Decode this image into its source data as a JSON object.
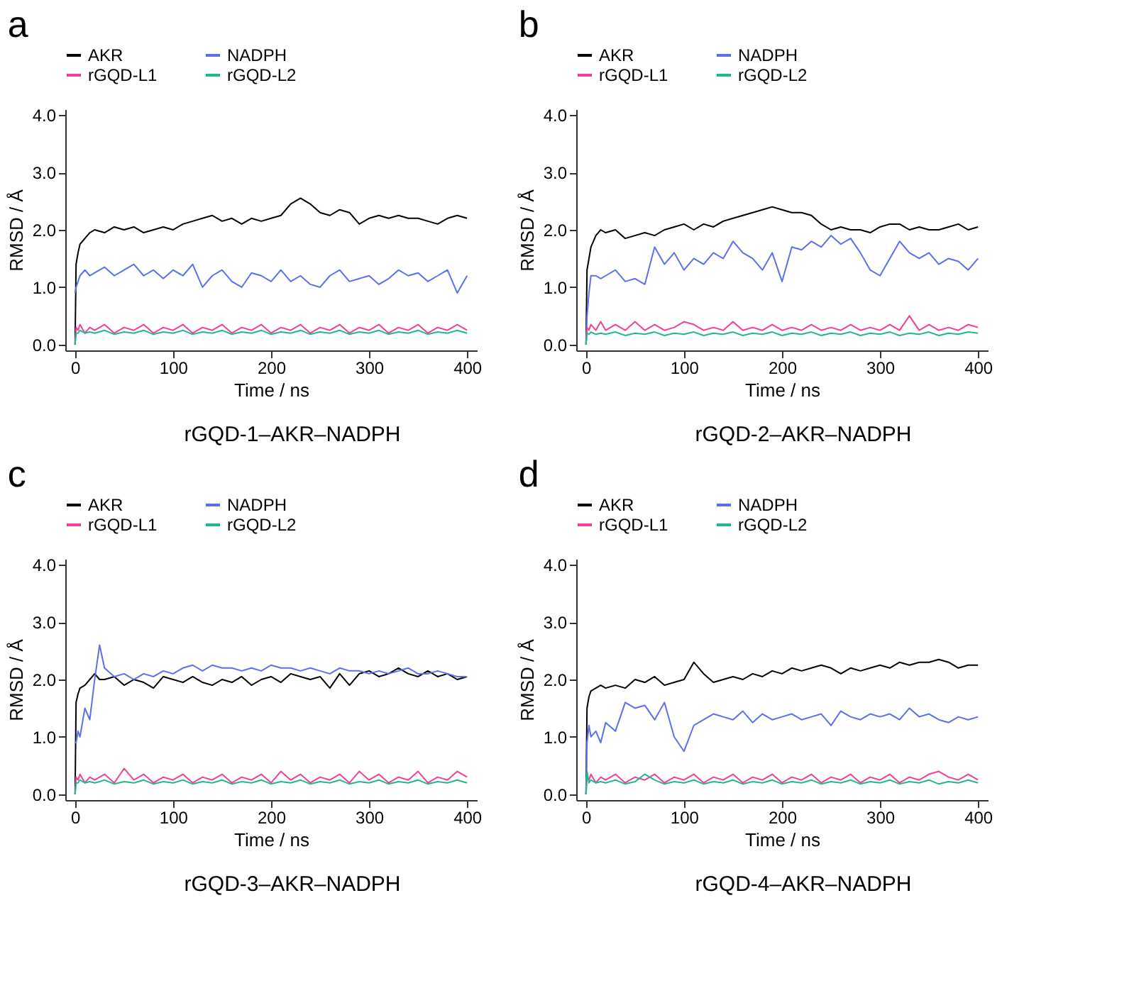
{
  "chart_data": [
    {
      "type": "line",
      "title": "a",
      "xlabel": "Time / ns",
      "ylabel": "RMSD / Å",
      "annotations": [
        "rGQD-1–AKR–NADPH"
      ],
      "legend": "top",
      "grid": false,
      "line_style": "solid",
      "xlim": [
        -10,
        410
      ],
      "xticks": [
        0,
        100,
        200,
        300,
        400
      ],
      "ylim": [
        -0.1,
        4.1
      ],
      "yticks": [
        {
          "value": 0,
          "label": "0.0"
        },
        {
          "value": 1,
          "label": "1.0"
        },
        {
          "value": 2,
          "label": "2.0"
        },
        {
          "value": 3,
          "label": "3.0"
        },
        {
          "value": 4,
          "label": "4.0"
        }
      ],
      "x": [
        0,
        1,
        3,
        5,
        10,
        15,
        20,
        30,
        40,
        50,
        60,
        70,
        80,
        90,
        100,
        110,
        120,
        130,
        140,
        150,
        160,
        170,
        180,
        190,
        200,
        210,
        220,
        230,
        240,
        250,
        260,
        270,
        280,
        290,
        300,
        310,
        320,
        330,
        340,
        350,
        360,
        370,
        380,
        390,
        400
      ],
      "series": [
        {
          "name": "AKR",
          "color": "#000000",
          "values": [
            0.0,
            1.4,
            1.6,
            1.75,
            1.85,
            1.95,
            2.0,
            1.95,
            2.05,
            2.0,
            2.05,
            1.95,
            2.0,
            2.05,
            2.0,
            2.1,
            2.15,
            2.2,
            2.25,
            2.15,
            2.2,
            2.1,
            2.2,
            2.15,
            2.2,
            2.25,
            2.45,
            2.55,
            2.45,
            2.3,
            2.25,
            2.35,
            2.3,
            2.1,
            2.2,
            2.25,
            2.2,
            2.25,
            2.2,
            2.2,
            2.15,
            2.1,
            2.2,
            2.25,
            2.2
          ]
        },
        {
          "name": "NADPH",
          "color": "#5b6ff0",
          "values": [
            0.9,
            1.0,
            1.1,
            1.2,
            1.3,
            1.2,
            1.25,
            1.35,
            1.2,
            1.3,
            1.4,
            1.2,
            1.3,
            1.15,
            1.3,
            1.2,
            1.4,
            1.0,
            1.2,
            1.3,
            1.1,
            1.0,
            1.25,
            1.2,
            1.1,
            1.3,
            1.1,
            1.2,
            1.05,
            1.0,
            1.2,
            1.3,
            1.1,
            1.15,
            1.2,
            1.05,
            1.15,
            1.3,
            1.2,
            1.25,
            1.1,
            1.2,
            1.3,
            0.9,
            1.2
          ]
        },
        {
          "name": "rGQD-L1",
          "color": "#f0409a",
          "values": [
            0.0,
            0.3,
            0.25,
            0.35,
            0.2,
            0.3,
            0.25,
            0.35,
            0.2,
            0.3,
            0.25,
            0.35,
            0.2,
            0.3,
            0.25,
            0.35,
            0.2,
            0.3,
            0.25,
            0.35,
            0.2,
            0.3,
            0.25,
            0.35,
            0.2,
            0.3,
            0.25,
            0.35,
            0.2,
            0.3,
            0.25,
            0.35,
            0.2,
            0.3,
            0.25,
            0.35,
            0.2,
            0.3,
            0.25,
            0.35,
            0.2,
            0.3,
            0.25,
            0.35,
            0.25
          ]
        },
        {
          "name": "rGQD-L2",
          "color": "#20b890",
          "values": [
            0.0,
            0.2,
            0.2,
            0.25,
            0.2,
            0.22,
            0.2,
            0.25,
            0.18,
            0.22,
            0.2,
            0.25,
            0.18,
            0.22,
            0.2,
            0.25,
            0.18,
            0.22,
            0.2,
            0.25,
            0.18,
            0.22,
            0.2,
            0.25,
            0.18,
            0.22,
            0.2,
            0.25,
            0.18,
            0.22,
            0.2,
            0.25,
            0.18,
            0.22,
            0.2,
            0.25,
            0.18,
            0.22,
            0.2,
            0.25,
            0.18,
            0.22,
            0.2,
            0.25,
            0.2
          ]
        }
      ]
    },
    {
      "type": "line",
      "title": "b",
      "xlabel": "Time / ns",
      "ylabel": "RMSD / Å",
      "annotations": [
        "rGQD-2–AKR–NADPH"
      ],
      "legend": "top",
      "grid": false,
      "line_style": "solid",
      "xlim": [
        -10,
        410
      ],
      "xticks": [
        0,
        100,
        200,
        300,
        400
      ],
      "ylim": [
        -0.1,
        4.1
      ],
      "yticks": [
        {
          "value": 0,
          "label": "0.0"
        },
        {
          "value": 1,
          "label": "1.0"
        },
        {
          "value": 2,
          "label": "2.0"
        },
        {
          "value": 3,
          "label": "3.0"
        },
        {
          "value": 4,
          "label": "4.0"
        }
      ],
      "x": [
        0,
        1,
        3,
        5,
        10,
        15,
        20,
        30,
        40,
        50,
        60,
        70,
        80,
        90,
        100,
        110,
        120,
        130,
        140,
        150,
        160,
        170,
        180,
        190,
        200,
        210,
        220,
        230,
        240,
        250,
        260,
        270,
        280,
        290,
        300,
        310,
        320,
        330,
        340,
        350,
        360,
        370,
        380,
        390,
        400
      ],
      "series": [
        {
          "name": "AKR",
          "color": "#000000",
          "values": [
            0.0,
            1.3,
            1.5,
            1.7,
            1.9,
            2.0,
            1.95,
            2.0,
            1.85,
            1.9,
            1.95,
            1.9,
            2.0,
            2.05,
            2.1,
            2.0,
            2.1,
            2.05,
            2.15,
            2.2,
            2.25,
            2.3,
            2.35,
            2.4,
            2.35,
            2.3,
            2.3,
            2.25,
            2.1,
            2.0,
            2.05,
            2.0,
            2.0,
            1.95,
            2.05,
            2.1,
            2.1,
            2.0,
            2.05,
            2.0,
            2.0,
            2.05,
            2.1,
            2.0,
            2.05
          ]
        },
        {
          "name": "NADPH",
          "color": "#5b6ff0",
          "values": [
            0.0,
            0.5,
            0.9,
            1.2,
            1.2,
            1.15,
            1.2,
            1.3,
            1.1,
            1.15,
            1.05,
            1.7,
            1.4,
            1.6,
            1.3,
            1.5,
            1.4,
            1.6,
            1.5,
            1.8,
            1.6,
            1.5,
            1.3,
            1.6,
            1.1,
            1.7,
            1.65,
            1.8,
            1.7,
            1.9,
            1.75,
            1.85,
            1.6,
            1.3,
            1.2,
            1.5,
            1.8,
            1.6,
            1.5,
            1.6,
            1.4,
            1.5,
            1.45,
            1.3,
            1.5
          ]
        },
        {
          "name": "rGQD-L1",
          "color": "#f0409a",
          "values": [
            0.0,
            0.3,
            0.25,
            0.35,
            0.25,
            0.4,
            0.25,
            0.35,
            0.25,
            0.4,
            0.25,
            0.35,
            0.25,
            0.3,
            0.4,
            0.35,
            0.25,
            0.3,
            0.25,
            0.4,
            0.25,
            0.3,
            0.25,
            0.35,
            0.25,
            0.3,
            0.25,
            0.35,
            0.25,
            0.3,
            0.25,
            0.35,
            0.25,
            0.3,
            0.25,
            0.35,
            0.25,
            0.5,
            0.25,
            0.35,
            0.25,
            0.3,
            0.25,
            0.35,
            0.3
          ]
        },
        {
          "name": "rGQD-L2",
          "color": "#20b890",
          "values": [
            0.0,
            0.2,
            0.18,
            0.22,
            0.18,
            0.2,
            0.18,
            0.22,
            0.16,
            0.2,
            0.18,
            0.22,
            0.16,
            0.2,
            0.18,
            0.22,
            0.16,
            0.2,
            0.18,
            0.22,
            0.16,
            0.2,
            0.18,
            0.22,
            0.16,
            0.2,
            0.18,
            0.22,
            0.16,
            0.2,
            0.18,
            0.22,
            0.16,
            0.2,
            0.18,
            0.22,
            0.16,
            0.2,
            0.18,
            0.22,
            0.16,
            0.2,
            0.18,
            0.22,
            0.2
          ]
        }
      ]
    },
    {
      "type": "line",
      "title": "c",
      "xlabel": "Time / ns",
      "ylabel": "RMSD / Å",
      "annotations": [
        "rGQD-3–AKR–NADPH"
      ],
      "legend": "top",
      "grid": false,
      "line_style": "solid",
      "xlim": [
        -10,
        410
      ],
      "xticks": [
        0,
        100,
        200,
        300,
        400
      ],
      "ylim": [
        -0.1,
        4.1
      ],
      "yticks": [
        {
          "value": 0,
          "label": "0.0"
        },
        {
          "value": 1,
          "label": "1.0"
        },
        {
          "value": 2,
          "label": "2.0"
        },
        {
          "value": 3,
          "label": "3.0"
        },
        {
          "value": 4,
          "label": "4.0"
        }
      ],
      "x": [
        0,
        1,
        3,
        5,
        10,
        15,
        20,
        25,
        30,
        40,
        50,
        60,
        70,
        80,
        90,
        100,
        110,
        120,
        130,
        140,
        150,
        160,
        170,
        180,
        190,
        200,
        210,
        220,
        230,
        240,
        250,
        260,
        270,
        280,
        290,
        300,
        310,
        320,
        330,
        340,
        350,
        360,
        370,
        380,
        390,
        400
      ],
      "series": [
        {
          "name": "AKR",
          "color": "#000000",
          "values": [
            0.0,
            1.6,
            1.75,
            1.85,
            1.9,
            2.0,
            2.1,
            2.0,
            2.0,
            2.05,
            1.9,
            2.0,
            1.95,
            1.85,
            2.05,
            2.0,
            1.95,
            2.05,
            1.95,
            1.9,
            2.0,
            1.95,
            2.05,
            1.9,
            2.0,
            2.05,
            1.95,
            2.1,
            2.05,
            2.0,
            2.05,
            1.85,
            2.1,
            1.9,
            2.1,
            2.15,
            2.05,
            2.1,
            2.2,
            2.1,
            2.05,
            2.15,
            2.05,
            2.1,
            2.0,
            2.05
          ]
        },
        {
          "name": "NADPH",
          "color": "#5b6ff0",
          "values": [
            0.9,
            0.9,
            1.1,
            1.0,
            1.5,
            1.3,
            2.0,
            2.6,
            2.2,
            2.05,
            2.1,
            2.0,
            2.1,
            2.05,
            2.15,
            2.1,
            2.2,
            2.25,
            2.15,
            2.25,
            2.2,
            2.2,
            2.15,
            2.2,
            2.15,
            2.25,
            2.2,
            2.2,
            2.15,
            2.2,
            2.15,
            2.1,
            2.2,
            2.15,
            2.15,
            2.1,
            2.15,
            2.1,
            2.15,
            2.2,
            2.1,
            2.1,
            2.15,
            2.1,
            2.05,
            2.05
          ]
        },
        {
          "name": "rGQD-L1",
          "color": "#f0409a",
          "values": [
            0.0,
            0.3,
            0.25,
            0.35,
            0.2,
            0.3,
            0.25,
            0.3,
            0.35,
            0.2,
            0.45,
            0.25,
            0.35,
            0.2,
            0.3,
            0.25,
            0.35,
            0.2,
            0.3,
            0.25,
            0.35,
            0.2,
            0.3,
            0.25,
            0.35,
            0.2,
            0.4,
            0.25,
            0.35,
            0.2,
            0.3,
            0.25,
            0.35,
            0.2,
            0.4,
            0.25,
            0.35,
            0.2,
            0.3,
            0.25,
            0.4,
            0.2,
            0.3,
            0.25,
            0.4,
            0.3
          ]
        },
        {
          "name": "rGQD-L2",
          "color": "#20b890",
          "values": [
            0.0,
            0.2,
            0.2,
            0.25,
            0.2,
            0.22,
            0.2,
            0.22,
            0.25,
            0.18,
            0.22,
            0.2,
            0.25,
            0.18,
            0.22,
            0.2,
            0.25,
            0.18,
            0.22,
            0.2,
            0.25,
            0.18,
            0.22,
            0.2,
            0.25,
            0.18,
            0.22,
            0.2,
            0.25,
            0.18,
            0.22,
            0.2,
            0.25,
            0.18,
            0.22,
            0.2,
            0.25,
            0.18,
            0.22,
            0.2,
            0.25,
            0.18,
            0.22,
            0.2,
            0.25,
            0.2
          ]
        }
      ]
    },
    {
      "type": "line",
      "title": "d",
      "xlabel": "Time / ns",
      "ylabel": "RMSD / Å",
      "annotations": [
        "rGQD-4–AKR–NADPH"
      ],
      "legend": "top",
      "grid": false,
      "line_style": "solid",
      "xlim": [
        -10,
        410
      ],
      "xticks": [
        0,
        100,
        200,
        300,
        400
      ],
      "ylim": [
        -0.1,
        4.1
      ],
      "yticks": [
        {
          "value": 0,
          "label": "0.0"
        },
        {
          "value": 1,
          "label": "1.0"
        },
        {
          "value": 2,
          "label": "2.0"
        },
        {
          "value": 3,
          "label": "3.0"
        },
        {
          "value": 4,
          "label": "4.0"
        }
      ],
      "x": [
        0,
        1,
        3,
        5,
        10,
        15,
        20,
        30,
        40,
        50,
        60,
        70,
        80,
        90,
        100,
        110,
        120,
        130,
        140,
        150,
        160,
        170,
        180,
        190,
        200,
        210,
        220,
        230,
        240,
        250,
        260,
        270,
        280,
        290,
        300,
        310,
        320,
        330,
        340,
        350,
        360,
        370,
        380,
        390,
        400
      ],
      "series": [
        {
          "name": "AKR",
          "color": "#000000",
          "values": [
            0.0,
            1.5,
            1.7,
            1.8,
            1.85,
            1.9,
            1.85,
            1.9,
            1.85,
            2.0,
            1.95,
            2.05,
            1.9,
            1.95,
            2.0,
            2.3,
            2.1,
            1.95,
            2.0,
            2.05,
            2.0,
            2.1,
            2.05,
            2.15,
            2.1,
            2.2,
            2.15,
            2.2,
            2.25,
            2.2,
            2.1,
            2.2,
            2.15,
            2.2,
            2.25,
            2.2,
            2.3,
            2.25,
            2.3,
            2.3,
            2.35,
            2.3,
            2.2,
            2.25,
            2.25
          ]
        },
        {
          "name": "NADPH",
          "color": "#5b6ff0",
          "values": [
            0.0,
            0.9,
            1.2,
            1.0,
            1.1,
            0.9,
            1.25,
            1.1,
            1.6,
            1.5,
            1.55,
            1.3,
            1.6,
            1.0,
            0.75,
            1.2,
            1.3,
            1.4,
            1.35,
            1.3,
            1.45,
            1.25,
            1.4,
            1.3,
            1.35,
            1.4,
            1.3,
            1.35,
            1.4,
            1.2,
            1.45,
            1.35,
            1.3,
            1.4,
            1.35,
            1.4,
            1.3,
            1.5,
            1.35,
            1.4,
            1.3,
            1.25,
            1.35,
            1.3,
            1.35
          ]
        },
        {
          "name": "rGQD-L1",
          "color": "#f0409a",
          "values": [
            0.0,
            0.3,
            0.25,
            0.35,
            0.2,
            0.3,
            0.25,
            0.35,
            0.2,
            0.3,
            0.25,
            0.35,
            0.2,
            0.3,
            0.25,
            0.35,
            0.2,
            0.3,
            0.25,
            0.35,
            0.2,
            0.3,
            0.25,
            0.35,
            0.2,
            0.3,
            0.25,
            0.35,
            0.2,
            0.3,
            0.25,
            0.35,
            0.2,
            0.3,
            0.25,
            0.35,
            0.2,
            0.3,
            0.25,
            0.35,
            0.4,
            0.3,
            0.25,
            0.35,
            0.25
          ]
        },
        {
          "name": "rGQD-L2",
          "color": "#20b890",
          "values": [
            0.0,
            0.4,
            0.2,
            0.25,
            0.2,
            0.22,
            0.2,
            0.25,
            0.18,
            0.22,
            0.35,
            0.25,
            0.18,
            0.22,
            0.2,
            0.25,
            0.18,
            0.22,
            0.2,
            0.25,
            0.18,
            0.22,
            0.2,
            0.25,
            0.18,
            0.22,
            0.2,
            0.25,
            0.18,
            0.22,
            0.2,
            0.25,
            0.18,
            0.22,
            0.2,
            0.25,
            0.18,
            0.22,
            0.2,
            0.25,
            0.18,
            0.22,
            0.2,
            0.25,
            0.2
          ]
        }
      ]
    }
  ]
}
